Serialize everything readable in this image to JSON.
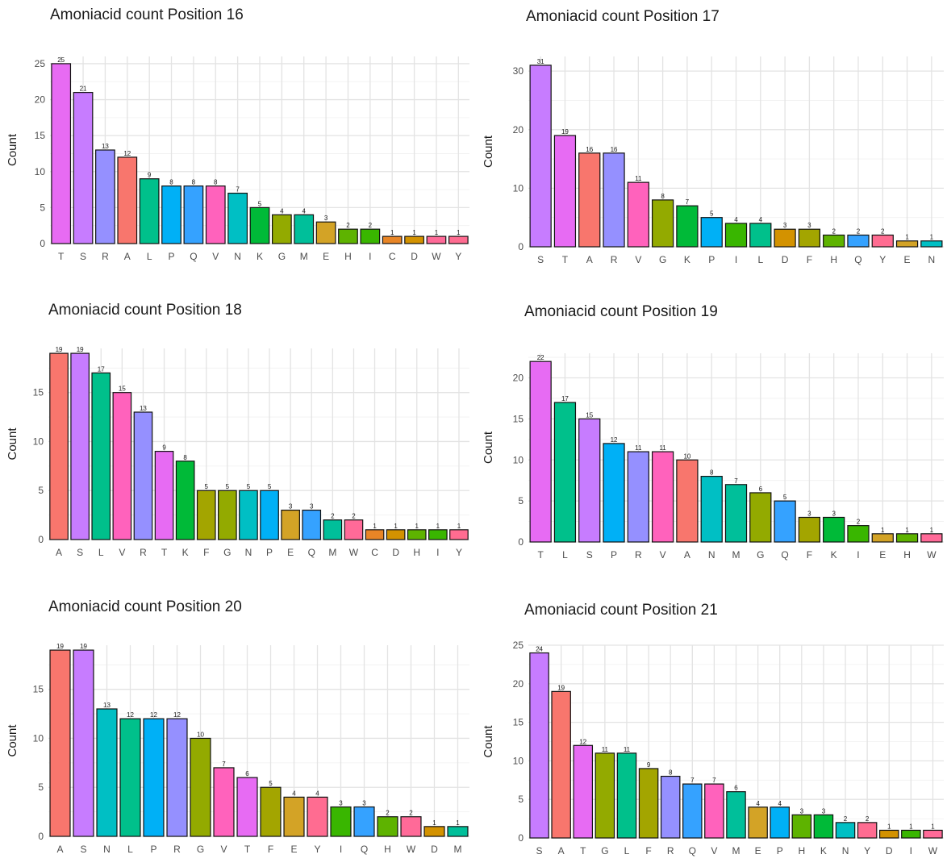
{
  "charts": [
    {
      "title": "Amoniacid count Position 16",
      "ylabel": "Count",
      "ylim": [
        0,
        26
      ],
      "yticks": [
        0,
        5,
        10,
        15,
        20,
        25
      ],
      "categories": [
        "T",
        "S",
        "R",
        "A",
        "L",
        "P",
        "Q",
        "V",
        "N",
        "K",
        "G",
        "M",
        "E",
        "H",
        "I",
        "C",
        "D",
        "W",
        "Y"
      ],
      "values": [
        25,
        21,
        13,
        12,
        9,
        8,
        8,
        8,
        7,
        5,
        4,
        4,
        3,
        2,
        2,
        1,
        1,
        1,
        1
      ]
    },
    {
      "title": "Amoniacid count Position 17",
      "ylabel": "Count",
      "ylim": [
        0,
        32.5
      ],
      "yticks": [
        0,
        10,
        20,
        30
      ],
      "categories": [
        "S",
        "T",
        "A",
        "R",
        "V",
        "G",
        "K",
        "P",
        "I",
        "L",
        "D",
        "F",
        "H",
        "Q",
        "Y",
        "E",
        "N"
      ],
      "values": [
        31,
        19,
        16,
        16,
        11,
        8,
        7,
        5,
        4,
        4,
        3,
        3,
        2,
        2,
        2,
        1,
        1
      ]
    },
    {
      "title": "Amoniacid count Position 18",
      "ylabel": "Count",
      "ylim": [
        0,
        19.5
      ],
      "yticks": [
        0,
        5,
        10,
        15
      ],
      "categories": [
        "A",
        "S",
        "L",
        "V",
        "R",
        "T",
        "K",
        "F",
        "G",
        "N",
        "P",
        "E",
        "Q",
        "M",
        "W",
        "C",
        "D",
        "H",
        "I",
        "Y"
      ],
      "values": [
        19,
        19,
        17,
        15,
        13,
        9,
        8,
        5,
        5,
        5,
        5,
        3,
        3,
        2,
        2,
        1,
        1,
        1,
        1,
        1
      ]
    },
    {
      "title": "Amoniacid count Position 19",
      "ylabel": "Count",
      "ylim": [
        0,
        23
      ],
      "yticks": [
        0,
        5,
        10,
        15,
        20
      ],
      "categories": [
        "T",
        "L",
        "S",
        "P",
        "R",
        "V",
        "A",
        "N",
        "M",
        "G",
        "Q",
        "F",
        "K",
        "I",
        "E",
        "H",
        "W"
      ],
      "values": [
        22,
        17,
        15,
        12,
        11,
        11,
        10,
        8,
        7,
        6,
        5,
        3,
        3,
        2,
        1,
        1,
        1
      ]
    },
    {
      "title": "Amoniacid count Position 20",
      "ylabel": "Count",
      "ylim": [
        0,
        19.5
      ],
      "yticks": [
        0,
        5,
        10,
        15
      ],
      "categories": [
        "A",
        "S",
        "N",
        "L",
        "P",
        "R",
        "G",
        "V",
        "T",
        "F",
        "E",
        "Y",
        "I",
        "Q",
        "H",
        "W",
        "D",
        "M"
      ],
      "values": [
        19,
        19,
        13,
        12,
        12,
        12,
        10,
        7,
        6,
        5,
        4,
        4,
        3,
        3,
        2,
        2,
        1,
        1
      ]
    },
    {
      "title": "Amoniacid count Position 21",
      "ylabel": "Count",
      "ylim": [
        0,
        25
      ],
      "yticks": [
        0,
        5,
        10,
        15,
        20,
        25
      ],
      "categories": [
        "S",
        "A",
        "T",
        "G",
        "L",
        "F",
        "R",
        "Q",
        "V",
        "M",
        "E",
        "P",
        "H",
        "K",
        "N",
        "Y",
        "D",
        "I",
        "W"
      ],
      "values": [
        24,
        19,
        12,
        11,
        11,
        9,
        8,
        7,
        7,
        6,
        4,
        4,
        3,
        3,
        2,
        2,
        1,
        1,
        1
      ]
    }
  ],
  "aa_colors": {
    "A": "#F8766D",
    "C": "#E88526",
    "D": "#D39200",
    "E": "#D3A326",
    "F": "#A3A500",
    "G": "#93AA00",
    "H": "#5EB300",
    "I": "#39B600",
    "K": "#00BA38",
    "L": "#00C08B",
    "M": "#00BF9A",
    "N": "#00BFC4",
    "P": "#00B0F6",
    "Q": "#35A2FF",
    "R": "#9590FF",
    "S": "#C77CFF",
    "T": "#E76BF3",
    "V": "#FF62BC",
    "W": "#FF6A98",
    "Y": "#FF6C91"
  },
  "chart_data": [
    {
      "type": "bar",
      "title": "Amoniacid count Position 16",
      "ylabel": "Count",
      "ylim": [
        0,
        26
      ],
      "categories": [
        "T",
        "S",
        "R",
        "A",
        "L",
        "P",
        "Q",
        "V",
        "N",
        "K",
        "G",
        "M",
        "E",
        "H",
        "I",
        "C",
        "D",
        "W",
        "Y"
      ],
      "values": [
        25,
        21,
        13,
        12,
        9,
        8,
        8,
        8,
        7,
        5,
        4,
        4,
        3,
        2,
        2,
        1,
        1,
        1,
        1
      ]
    },
    {
      "type": "bar",
      "title": "Amoniacid count Position 17",
      "ylabel": "Count",
      "ylim": [
        0,
        32.5
      ],
      "categories": [
        "S",
        "T",
        "A",
        "R",
        "V",
        "G",
        "K",
        "P",
        "I",
        "L",
        "D",
        "F",
        "H",
        "Q",
        "Y",
        "E",
        "N"
      ],
      "values": [
        31,
        19,
        16,
        16,
        11,
        8,
        7,
        5,
        4,
        4,
        3,
        3,
        2,
        2,
        2,
        1,
        1
      ]
    },
    {
      "type": "bar",
      "title": "Amoniacid count Position 18",
      "ylabel": "Count",
      "ylim": [
        0,
        19.5
      ],
      "categories": [
        "A",
        "S",
        "L",
        "V",
        "R",
        "T",
        "K",
        "F",
        "G",
        "N",
        "P",
        "E",
        "Q",
        "M",
        "W",
        "C",
        "D",
        "H",
        "I",
        "Y"
      ],
      "values": [
        19,
        19,
        17,
        15,
        13,
        9,
        8,
        5,
        5,
        5,
        5,
        3,
        3,
        2,
        2,
        1,
        1,
        1,
        1,
        1
      ]
    },
    {
      "type": "bar",
      "title": "Amoniacid count Position 19",
      "ylabel": "Count",
      "ylim": [
        0,
        23
      ],
      "categories": [
        "T",
        "L",
        "S",
        "P",
        "R",
        "V",
        "A",
        "N",
        "M",
        "G",
        "Q",
        "F",
        "K",
        "I",
        "E",
        "H",
        "W"
      ],
      "values": [
        22,
        17,
        15,
        12,
        11,
        11,
        10,
        8,
        7,
        6,
        5,
        3,
        3,
        2,
        1,
        1,
        1
      ]
    },
    {
      "type": "bar",
      "title": "Amoniacid count Position 20",
      "ylabel": "Count",
      "ylim": [
        0,
        19.5
      ],
      "categories": [
        "A",
        "S",
        "N",
        "L",
        "P",
        "R",
        "G",
        "V",
        "T",
        "F",
        "E",
        "Y",
        "I",
        "Q",
        "H",
        "W",
        "D",
        "M"
      ],
      "values": [
        19,
        19,
        13,
        12,
        12,
        12,
        10,
        7,
        6,
        5,
        4,
        4,
        3,
        3,
        2,
        2,
        1,
        1
      ]
    },
    {
      "type": "bar",
      "title": "Amoniacid count Position 21",
      "ylabel": "Count",
      "ylim": [
        0,
        25
      ],
      "categories": [
        "S",
        "A",
        "T",
        "G",
        "L",
        "F",
        "R",
        "Q",
        "V",
        "M",
        "E",
        "P",
        "H",
        "K",
        "N",
        "Y",
        "D",
        "I",
        "W"
      ],
      "values": [
        24,
        19,
        12,
        11,
        11,
        9,
        8,
        7,
        7,
        6,
        4,
        4,
        3,
        3,
        2,
        2,
        1,
        1,
        1
      ]
    }
  ]
}
